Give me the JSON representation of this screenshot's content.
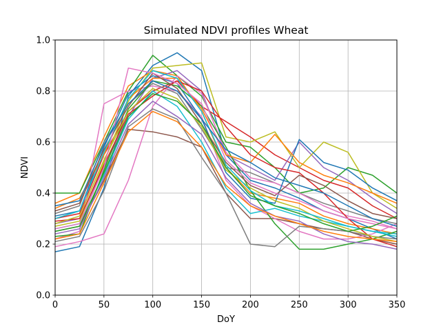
{
  "chart_data": {
    "type": "line",
    "title": "Simulated NDVI profiles Wheat",
    "xlabel": "DoY",
    "ylabel": "NDVI",
    "xlim": [
      0,
      350
    ],
    "ylim": [
      0.0,
      1.0
    ],
    "xticks": [
      0,
      50,
      100,
      150,
      200,
      250,
      300,
      350
    ],
    "yticks": [
      0.0,
      0.2,
      0.4,
      0.6,
      0.8,
      1.0
    ],
    "grid": true,
    "x": [
      0,
      25,
      50,
      75,
      100,
      125,
      150,
      175,
      200,
      225,
      250,
      275,
      300,
      325,
      350
    ],
    "series": [
      {
        "color": "#1f77b4",
        "values": [
          0.17,
          0.19,
          0.42,
          0.78,
          0.9,
          0.95,
          0.88,
          0.55,
          0.45,
          0.42,
          0.38,
          0.33,
          0.3,
          0.26,
          0.22
        ]
      },
      {
        "color": "#ff7f0e",
        "values": [
          0.36,
          0.4,
          0.62,
          0.82,
          0.88,
          0.86,
          0.72,
          0.5,
          0.4,
          0.38,
          0.36,
          0.31,
          0.28,
          0.26,
          0.24
        ]
      },
      {
        "color": "#2ca02c",
        "values": [
          0.4,
          0.4,
          0.6,
          0.8,
          0.94,
          0.86,
          0.78,
          0.6,
          0.58,
          0.5,
          0.4,
          0.42,
          0.5,
          0.47,
          0.4
        ]
      },
      {
        "color": "#d62728",
        "values": [
          0.3,
          0.32,
          0.55,
          0.72,
          0.8,
          0.84,
          0.74,
          0.68,
          0.62,
          0.55,
          0.5,
          0.45,
          0.42,
          0.35,
          0.3
        ]
      },
      {
        "color": "#9467bd",
        "values": [
          0.28,
          0.3,
          0.5,
          0.7,
          0.85,
          0.88,
          0.8,
          0.55,
          0.5,
          0.45,
          0.6,
          0.5,
          0.45,
          0.38,
          0.32
        ]
      },
      {
        "color": "#8c564b",
        "values": [
          0.25,
          0.27,
          0.45,
          0.65,
          0.64,
          0.62,
          0.58,
          0.4,
          0.3,
          0.3,
          0.28,
          0.26,
          0.25,
          0.22,
          0.2
        ]
      },
      {
        "color": "#e377c2",
        "values": [
          0.22,
          0.25,
          0.75,
          0.8,
          0.82,
          0.8,
          0.7,
          0.45,
          0.35,
          0.3,
          0.25,
          0.22,
          0.22,
          0.24,
          0.28
        ]
      },
      {
        "color": "#7f7f7f",
        "values": [
          0.32,
          0.35,
          0.6,
          0.75,
          0.83,
          0.79,
          0.65,
          0.5,
          0.48,
          0.44,
          0.4,
          0.36,
          0.33,
          0.3,
          0.28
        ]
      },
      {
        "color": "#bcbd22",
        "values": [
          0.27,
          0.29,
          0.52,
          0.76,
          0.89,
          0.9,
          0.91,
          0.62,
          0.6,
          0.64,
          0.5,
          0.6,
          0.56,
          0.4,
          0.34
        ]
      },
      {
        "color": "#17becf",
        "values": [
          0.26,
          0.28,
          0.47,
          0.69,
          0.8,
          0.74,
          0.6,
          0.42,
          0.32,
          0.34,
          0.31,
          0.29,
          0.27,
          0.25,
          0.24
        ]
      },
      {
        "color": "#e377c2",
        "values": [
          0.19,
          0.21,
          0.24,
          0.45,
          0.74,
          0.86,
          0.79,
          0.56,
          0.46,
          0.44,
          0.4,
          0.35,
          0.31,
          0.29,
          0.26
        ]
      },
      {
        "color": "#1f77b4",
        "values": [
          0.31,
          0.33,
          0.58,
          0.79,
          0.86,
          0.83,
          0.69,
          0.48,
          0.38,
          0.36,
          0.61,
          0.52,
          0.49,
          0.42,
          0.37
        ]
      },
      {
        "color": "#2ca02c",
        "values": [
          0.23,
          0.24,
          0.49,
          0.73,
          0.84,
          0.82,
          0.74,
          0.58,
          0.41,
          0.28,
          0.18,
          0.18,
          0.2,
          0.22,
          0.25
        ]
      },
      {
        "color": "#ff7f0e",
        "values": [
          0.34,
          0.38,
          0.55,
          0.77,
          0.85,
          0.85,
          0.73,
          0.55,
          0.52,
          0.63,
          0.52,
          0.47,
          0.44,
          0.4,
          0.36
        ]
      },
      {
        "color": "#d62728",
        "values": [
          0.29,
          0.3,
          0.51,
          0.71,
          0.78,
          0.84,
          0.8,
          0.66,
          0.55,
          0.5,
          0.48,
          0.4,
          0.3,
          0.22,
          0.19
        ]
      },
      {
        "color": "#9467bd",
        "values": [
          0.24,
          0.26,
          0.46,
          0.67,
          0.76,
          0.7,
          0.63,
          0.46,
          0.36,
          0.31,
          0.29,
          0.24,
          0.21,
          0.2,
          0.18
        ]
      },
      {
        "color": "#8c564b",
        "values": [
          0.33,
          0.36,
          0.57,
          0.74,
          0.87,
          0.81,
          0.67,
          0.52,
          0.43,
          0.39,
          0.47,
          0.43,
          0.37,
          0.32,
          0.3
        ]
      },
      {
        "color": "#7f7f7f",
        "values": [
          0.21,
          0.23,
          0.41,
          0.66,
          0.73,
          0.69,
          0.54,
          0.4,
          0.2,
          0.19,
          0.27,
          0.26,
          0.25,
          0.23,
          0.22
        ]
      },
      {
        "color": "#bcbd22",
        "values": [
          0.28,
          0.31,
          0.53,
          0.72,
          0.81,
          0.77,
          0.66,
          0.49,
          0.42,
          0.37,
          0.34,
          0.29,
          0.26,
          0.23,
          0.21
        ]
      },
      {
        "color": "#17becf",
        "values": [
          0.3,
          0.33,
          0.56,
          0.77,
          0.88,
          0.85,
          0.72,
          0.51,
          0.41,
          0.35,
          0.33,
          0.3,
          0.27,
          0.25,
          0.23
        ]
      },
      {
        "color": "#e377c2",
        "values": [
          0.26,
          0.28,
          0.5,
          0.89,
          0.87,
          0.83,
          0.75,
          0.53,
          0.44,
          0.4,
          0.37,
          0.33,
          0.3,
          0.28,
          0.26
        ]
      },
      {
        "color": "#1f77b4",
        "values": [
          0.35,
          0.37,
          0.59,
          0.75,
          0.84,
          0.8,
          0.69,
          0.57,
          0.52,
          0.46,
          0.43,
          0.4,
          0.35,
          0.3,
          0.27
        ]
      },
      {
        "color": "#2ca02c",
        "values": [
          0.25,
          0.27,
          0.48,
          0.7,
          0.79,
          0.76,
          0.67,
          0.5,
          0.39,
          0.35,
          0.32,
          0.28,
          0.25,
          0.27,
          0.31
        ]
      },
      {
        "color": "#ff7f0e",
        "values": [
          0.22,
          0.24,
          0.44,
          0.64,
          0.72,
          0.68,
          0.58,
          0.43,
          0.35,
          0.31,
          0.28,
          0.25,
          0.23,
          0.22,
          0.21
        ]
      }
    ]
  }
}
